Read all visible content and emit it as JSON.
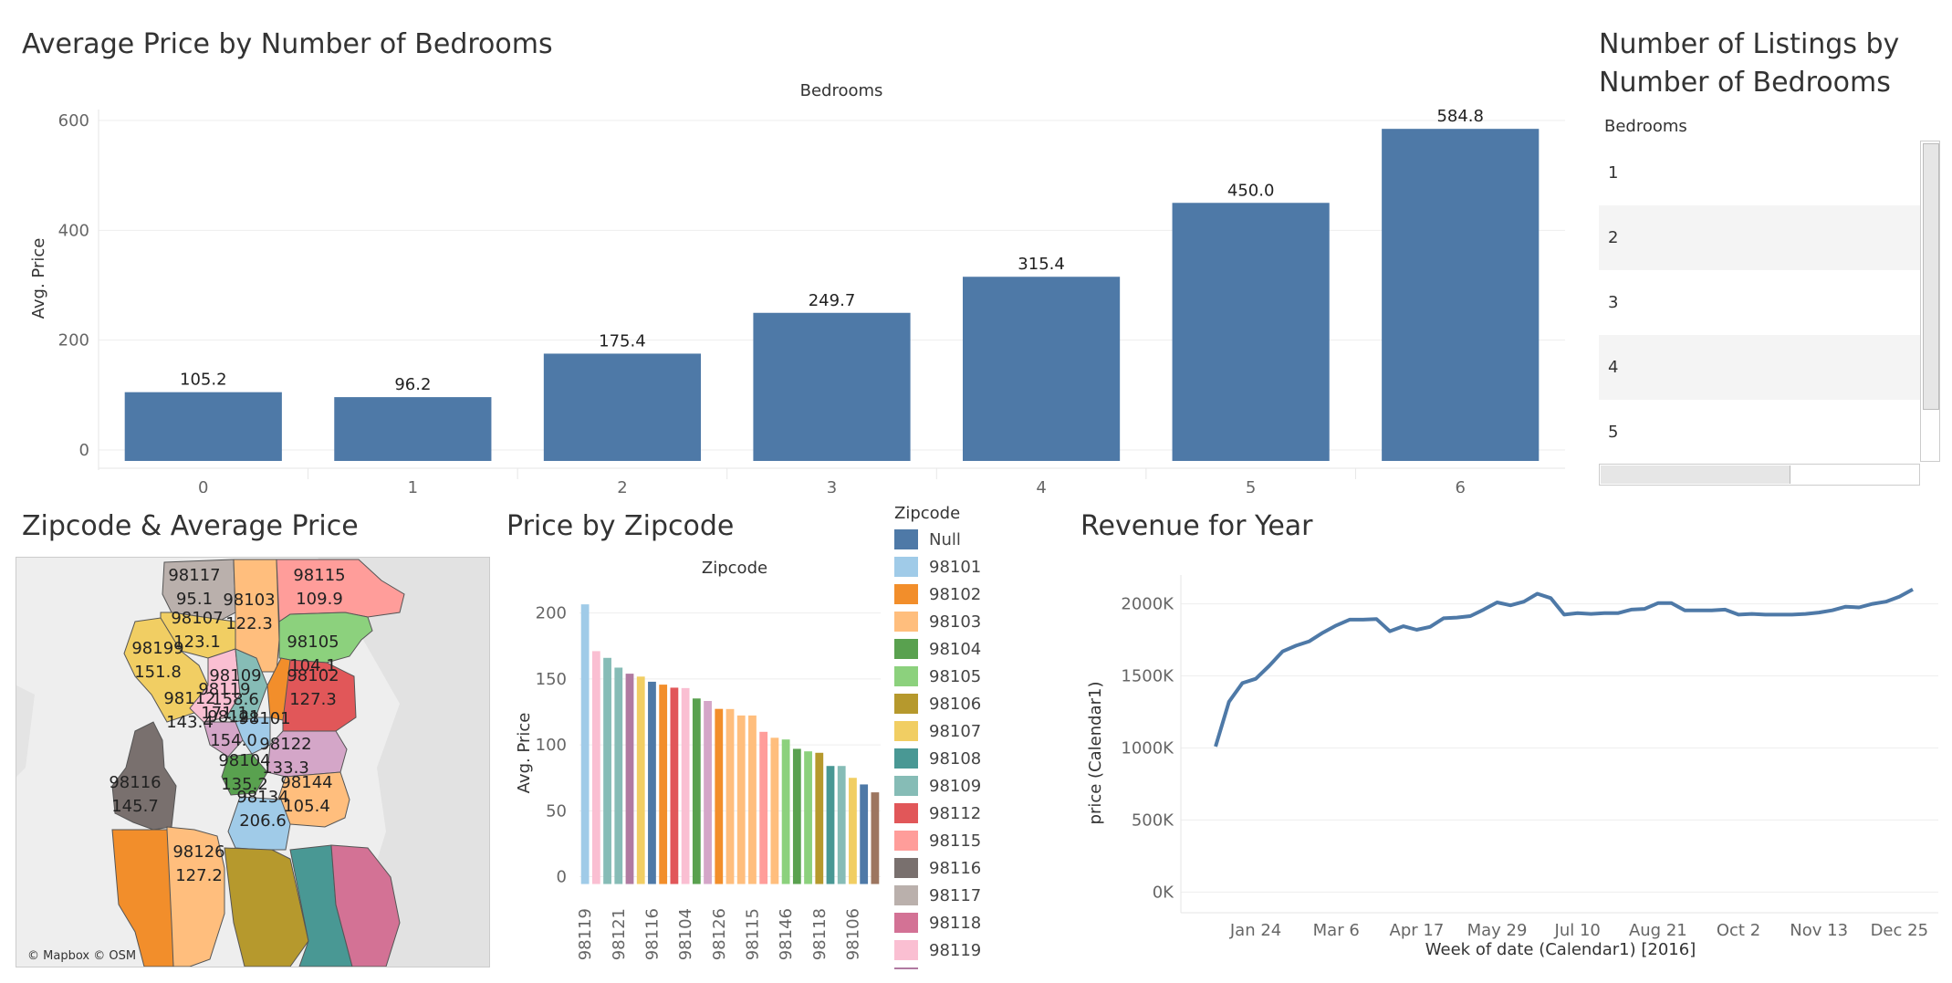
{
  "titles": {
    "bedrooms_price": "Average Price by Number of Bedrooms",
    "listings": "Number of Listings by\nNumber of Bedrooms",
    "map": "Zipcode & Average Price",
    "zip_price": "Price by Zipcode",
    "revenue": "Revenue for Year"
  },
  "chart_data": [
    {
      "type": "bar",
      "title": "Average Price by Number of Bedrooms",
      "column_header": "Bedrooms",
      "ylabel": "Avg. Price",
      "categories": [
        "0",
        "1",
        "2",
        "3",
        "4",
        "5",
        "6"
      ],
      "values": [
        105.2,
        96.2,
        175.4,
        249.7,
        315.4,
        450.0,
        584.8
      ],
      "value_labels": [
        "105.2",
        "96.2",
        "175.4",
        "249.7",
        "315.4",
        "450.0",
        "584.8"
      ],
      "yticks": [
        "0",
        "200",
        "400",
        "600"
      ],
      "ylim": [
        -20,
        620
      ],
      "color": "#4e79a7"
    },
    {
      "type": "table",
      "title": "Number of Listings by Number of Bedrooms",
      "column_header": "Bedrooms",
      "rows": [
        "1",
        "2",
        "3",
        "4",
        "5"
      ]
    },
    {
      "type": "bar",
      "title": "Price by Zipcode",
      "column_header": "Zipcode",
      "ylabel": "Avg. Price",
      "values": [
        206.6,
        171.1,
        166,
        158.6,
        154.0,
        151.8,
        147.9,
        145.7,
        143.4,
        143.1,
        135.2,
        133.3,
        127.3,
        127.2,
        122.3,
        122.3,
        109.9,
        105.4,
        104.1,
        97,
        95.1,
        94,
        84,
        84,
        75,
        70,
        64
      ],
      "colors": [
        "#a0cbe8",
        "#fabfd2",
        "#86bcb6",
        "#86bcb6",
        "#b07aa1",
        "#f1ce63",
        "#4e79a7",
        "#f28e2b",
        "#e15759",
        "#fabfd2",
        "#59a14f",
        "#d4a6c8",
        "#f28e2b",
        "#ffbe7d",
        "#ffbe7d",
        "#ffbe7d",
        "#ff9d9a",
        "#ffbe7d",
        "#8cd17d",
        "#59a14f",
        "#8cd17d",
        "#b6992d",
        "#499894",
        "#86bcb6",
        "#f1ce63",
        "#4e79a7",
        "#9d7660"
      ],
      "xtick_labels": [
        "98119",
        "98121",
        "98116",
        "98104",
        "98126",
        "98115",
        "98146",
        "98118",
        "98106"
      ],
      "yticks": [
        "0",
        "50",
        "100",
        "150",
        "200"
      ],
      "ylim": [
        -10,
        215
      ]
    },
    {
      "type": "line",
      "title": "Revenue for Year",
      "xlabel": "Week of date (Calendar1) [2016]",
      "ylabel": "price (Calendar1)",
      "xtick_labels": [
        "Jan 24",
        "Mar 6",
        "Apr 17",
        "May 29",
        "Jul 10",
        "Aug 21",
        "Oct 2",
        "Nov 13",
        "Dec 25"
      ],
      "yticks": [
        "0K",
        "500K",
        "1000K",
        "1500K",
        "2000K"
      ],
      "ylim": [
        -80000,
        2200000
      ],
      "values": [
        1010000,
        1320000,
        1450000,
        1480000,
        1570000,
        1670000,
        1710000,
        1740000,
        1800000,
        1850000,
        1890000,
        1890000,
        1895000,
        1810000,
        1845000,
        1820000,
        1840000,
        1900000,
        1905000,
        1915000,
        1960000,
        2010000,
        1990000,
        2015000,
        2070000,
        2040000,
        1925000,
        1935000,
        1930000,
        1935000,
        1935000,
        1960000,
        1965000,
        2005000,
        2005000,
        1955000,
        1955000,
        1955000,
        1960000,
        1925000,
        1930000,
        1925000,
        1925000,
        1925000,
        1930000,
        1940000,
        1955000,
        1980000,
        1975000,
        2000000,
        2015000,
        2050000,
        2100000
      ],
      "color": "#4e79a7"
    }
  ],
  "legend": {
    "title": "Zipcode",
    "items": [
      {
        "label": "Null",
        "color": "#4e79a7"
      },
      {
        "label": "98101",
        "color": "#a0cbe8"
      },
      {
        "label": "98102",
        "color": "#f28e2b"
      },
      {
        "label": "98103",
        "color": "#ffbe7d"
      },
      {
        "label": "98104",
        "color": "#59a14f"
      },
      {
        "label": "98105",
        "color": "#8cd17d"
      },
      {
        "label": "98106",
        "color": "#b6992d"
      },
      {
        "label": "98107",
        "color": "#f1ce63"
      },
      {
        "label": "98108",
        "color": "#499894"
      },
      {
        "label": "98109",
        "color": "#86bcb6"
      },
      {
        "label": "98112",
        "color": "#e15759"
      },
      {
        "label": "98115",
        "color": "#ff9d9a"
      },
      {
        "label": "98116",
        "color": "#79706e"
      },
      {
        "label": "98117",
        "color": "#bab0ac"
      },
      {
        "label": "98118",
        "color": "#d37295"
      },
      {
        "label": "98119",
        "color": "#fabfd2"
      },
      {
        "label": "",
        "color": "#b07aa1"
      }
    ]
  },
  "map": {
    "credit": "© Mapbox © OSM",
    "regions": [
      {
        "zip": "98117",
        "price": "95.1",
        "color": "#bab0ac"
      },
      {
        "zip": "98103",
        "price": "122.3",
        "color": "#ffbe7d"
      },
      {
        "zip": "98115",
        "price": "109.9",
        "color": "#ff9d9a"
      },
      {
        "zip": "98107",
        "price": "123.1",
        "color": "#f1ce63"
      },
      {
        "zip": "98105",
        "price": "104.1",
        "color": "#8cd17d"
      },
      {
        "zip": "98199",
        "price": "151.8",
        "color": "#f1ce63"
      },
      {
        "zip": "98119",
        "price": "171.1",
        "color": "#fabfd2"
      },
      {
        "zip": "98109",
        "price": "158.6",
        "color": "#86bcb6"
      },
      {
        "zip": "98102",
        "price": "127.3",
        "color": "#f28e2b"
      },
      {
        "zip": "98112",
        "price": "143.4",
        "color": "#e15759"
      },
      {
        "zip": "98121",
        "price": "154.0",
        "color": "#d4a6c8"
      },
      {
        "zip": "98101",
        "price": "",
        "color": "#a0cbe8"
      },
      {
        "zip": "98104",
        "price": "135.2",
        "color": "#59a14f"
      },
      {
        "zip": "98122",
        "price": "133.3",
        "color": "#d4a6c8"
      },
      {
        "zip": "98144",
        "price": "105.4",
        "color": "#ffbe7d"
      },
      {
        "zip": "98134",
        "price": "206.6",
        "color": "#a0cbe8"
      },
      {
        "zip": "98116",
        "price": "145.7",
        "color": "#79706e"
      },
      {
        "zip": "98126",
        "price": "127.2",
        "color": "#ffbe7d"
      }
    ]
  }
}
